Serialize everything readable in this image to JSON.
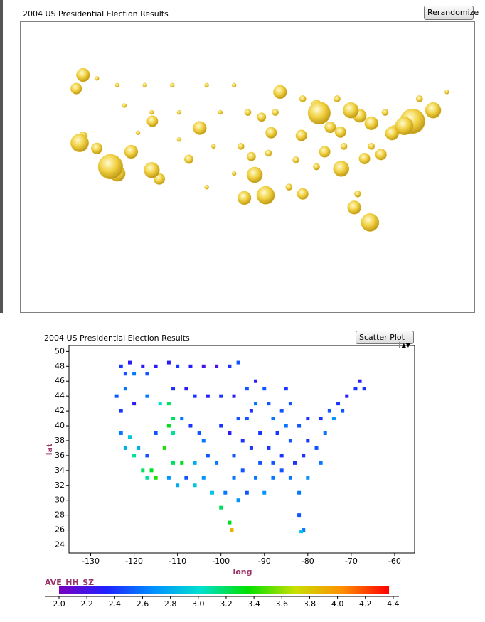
{
  "chart_data": [
    {
      "type": "bubble",
      "title": "2004 US Presidential Election Results",
      "button": "Rerandomize",
      "color": "#e8c430",
      "xlim": [
        -131,
        -65
      ],
      "ylim": [
        12.5,
        55.3
      ],
      "x": [
        -122,
        -123,
        -122.5,
        -118,
        -117,
        -112,
        -105,
        -111.9,
        -97,
        -95.4,
        -98.5,
        -90,
        -84.4,
        -80.2,
        -82.5,
        -87.6,
        -83,
        -81.7,
        -80,
        -75.2,
        -74,
        -71,
        -77,
        -76.6,
        -93.3,
        -90.2,
        -94.6,
        -86.8,
        -86,
        -84.5,
        -122,
        -120,
        -115,
        -106.6,
        -110.9,
        -97.5,
        -96,
        -88,
        -78.6,
        -81,
        -120,
        -117,
        -113,
        -109,
        -104,
        -100,
        -116,
        -112,
        -108,
        -102,
        -98,
        -94,
        -90,
        -114,
        -108,
        -103,
        -99,
        -95,
        -91,
        -88,
        -92,
        -100,
        -104,
        -84,
        -80,
        -78,
        -73,
        -69,
        -85,
        -82
      ],
      "y": [
        47.5,
        45.5,
        37.5,
        34,
        33,
        33.5,
        39.7,
        40.7,
        32.8,
        29.8,
        29.4,
        30,
        33.7,
        25.8,
        28,
        41.9,
        42.3,
        41.5,
        40.4,
        40,
        40.7,
        42.3,
        38.9,
        39.3,
        45,
        38.6,
        39,
        36.2,
        39.8,
        39.1,
        38.5,
        36.7,
        36.2,
        35.1,
        32.2,
        35.5,
        41.3,
        43,
        35.8,
        35.2,
        47,
        46,
        46,
        46,
        46,
        46,
        43,
        42,
        42,
        42,
        42,
        42,
        44,
        39,
        38,
        37,
        37,
        36,
        35,
        34,
        31,
        33,
        31,
        37,
        37,
        42,
        44,
        45,
        44,
        30
      ],
      "sizes": [
        5,
        4,
        7,
        10,
        6,
        6,
        5,
        4,
        6,
        7,
        5,
        4,
        6,
        7,
        5,
        9,
        6,
        5,
        5,
        7,
        10,
        6,
        5,
        4,
        5,
        4,
        4,
        4,
        4,
        4,
        3,
        4,
        5,
        3,
        4,
        3,
        3,
        4,
        4,
        4,
        1,
        1,
        1,
        1,
        1,
        1,
        1,
        1,
        1,
        1,
        2,
        2,
        2,
        1,
        1,
        1,
        2,
        2,
        2,
        2,
        2,
        1,
        1,
        2,
        2,
        2,
        2,
        1,
        2,
        2
      ]
    },
    {
      "type": "scatter",
      "title": "2004 US Presidential Election Results",
      "selector": "Scatter Plot",
      "x_label": "long",
      "y_label": "lat",
      "xlim": [
        -135,
        -55.4
      ],
      "ylim": [
        22.9,
        50.8
      ],
      "xticks": [
        -130,
        -120,
        -110,
        -100,
        -90,
        -80,
        -70,
        -60
      ],
      "yticks": [
        24,
        26,
        28,
        30,
        32,
        34,
        36,
        38,
        40,
        42,
        44,
        46,
        48,
        50
      ],
      "x": [
        -123,
        -122,
        -121,
        -120,
        -118,
        -117,
        -115,
        -112,
        -110,
        -107,
        -104,
        -101,
        -98,
        -96,
        -124,
        -122,
        -123,
        -120,
        -117,
        -114,
        -112,
        -111,
        -108,
        -106,
        -103,
        -100,
        -97,
        -123,
        -122,
        -121,
        -120,
        -119,
        -118,
        -117,
        -116,
        -115,
        -117,
        -115,
        -113,
        -112,
        -111,
        -111,
        -109,
        -107,
        -105,
        -104,
        -112,
        -110,
        -111,
        -109,
        -108,
        -106,
        -106,
        -104,
        -103,
        -101,
        -102,
        -100,
        -98,
        -97.5,
        -99,
        -97,
        -96,
        -94,
        -100,
        -98,
        -96,
        -95,
        -93,
        -94,
        -92,
        -90,
        -89,
        -88,
        -86,
        -84,
        -85,
        -87,
        -89,
        -91,
        -92,
        -90,
        -88,
        -86,
        -84,
        -82,
        -82,
        -81,
        -81.5,
        -83,
        -81,
        -80,
        -78,
        -77,
        -80,
        -82,
        -80,
        -77,
        -75,
        -74,
        -73,
        -72,
        -71,
        -69,
        -68,
        -67,
        -76,
        -84,
        -86,
        -88,
        -93,
        -97,
        -95,
        -91,
        -85,
        -94,
        -92
      ],
      "y": [
        48,
        47,
        48.5,
        47,
        48,
        47,
        48,
        48.5,
        48,
        48,
        48,
        48,
        48,
        48.5,
        44,
        45,
        42,
        43,
        44,
        43,
        43,
        45,
        45,
        44,
        44,
        44,
        44,
        39,
        37,
        38.5,
        36,
        37,
        34,
        33,
        34,
        33,
        36,
        39,
        37,
        40,
        41,
        39,
        41,
        40,
        39,
        38,
        33,
        32,
        35,
        35,
        33,
        32,
        35,
        33,
        36,
        35,
        31,
        29,
        27,
        26,
        31,
        33,
        30,
        31,
        40,
        39,
        41,
        38,
        42,
        45,
        46,
        45,
        43,
        41,
        42,
        43,
        45,
        39,
        37,
        35,
        33,
        31,
        33,
        34,
        33,
        31,
        28,
        26,
        25.8,
        35,
        36,
        38,
        37,
        35,
        33,
        40,
        41,
        41,
        42,
        41,
        43,
        42,
        44,
        45,
        46,
        45,
        39,
        38,
        36,
        35,
        37,
        36,
        34,
        39,
        40,
        41,
        43
      ],
      "color_values": [
        2.4,
        2.5,
        2.3,
        2.6,
        2.3,
        2.5,
        2.3,
        2.3,
        2.4,
        2.3,
        2.2,
        2.2,
        2.4,
        2.5,
        2.5,
        2.6,
        2.4,
        2.3,
        2.6,
        3.0,
        3.2,
        2.4,
        2.3,
        2.4,
        2.3,
        2.4,
        2.3,
        2.6,
        2.8,
        2.9,
        3.1,
        2.8,
        3.2,
        3.1,
        3.3,
        3.4,
        2.5,
        2.5,
        3.4,
        3.3,
        3.2,
        3.1,
        2.6,
        2.4,
        2.5,
        2.6,
        2.7,
        2.8,
        3.2,
        3.3,
        2.5,
        2.9,
        2.8,
        2.7,
        2.5,
        2.6,
        2.9,
        3.2,
        3.3,
        3.9,
        2.6,
        2.6,
        2.7,
        2.5,
        2.4,
        2.3,
        2.5,
        2.4,
        2.4,
        2.5,
        2.3,
        2.5,
        2.5,
        2.6,
        2.5,
        2.5,
        2.4,
        2.4,
        2.4,
        2.5,
        2.6,
        2.7,
        2.6,
        2.5,
        2.6,
        2.6,
        2.5,
        2.6,
        2.9,
        2.4,
        2.4,
        2.4,
        2.5,
        2.6,
        2.7,
        2.5,
        2.4,
        2.4,
        2.5,
        2.7,
        2.4,
        2.5,
        2.3,
        2.4,
        2.3,
        2.4,
        2.6,
        2.5,
        2.4,
        2.5,
        2.4,
        2.5,
        2.5,
        2.4,
        2.6,
        2.5,
        2.6
      ],
      "colorbar": {
        "label": "AVE_HH_SZ",
        "lim": [
          2,
          4.37
        ],
        "colormap": [
          "#7a00c0",
          "#2020ff",
          "#0090ff",
          "#00e0d0",
          "#00e000",
          "#c8e000",
          "#ff9000",
          "#ff0000"
        ],
        "ticks": [
          {
            "value": 2,
            "label": "2.0"
          },
          2.2,
          2.4,
          2.6,
          2.8,
          {
            "value": 3,
            "label": "3.0"
          },
          3.2,
          3.4,
          3.6,
          3.8,
          {
            "value": 4,
            "label": "4.0"
          },
          4.2,
          4.4
        ]
      }
    }
  ]
}
